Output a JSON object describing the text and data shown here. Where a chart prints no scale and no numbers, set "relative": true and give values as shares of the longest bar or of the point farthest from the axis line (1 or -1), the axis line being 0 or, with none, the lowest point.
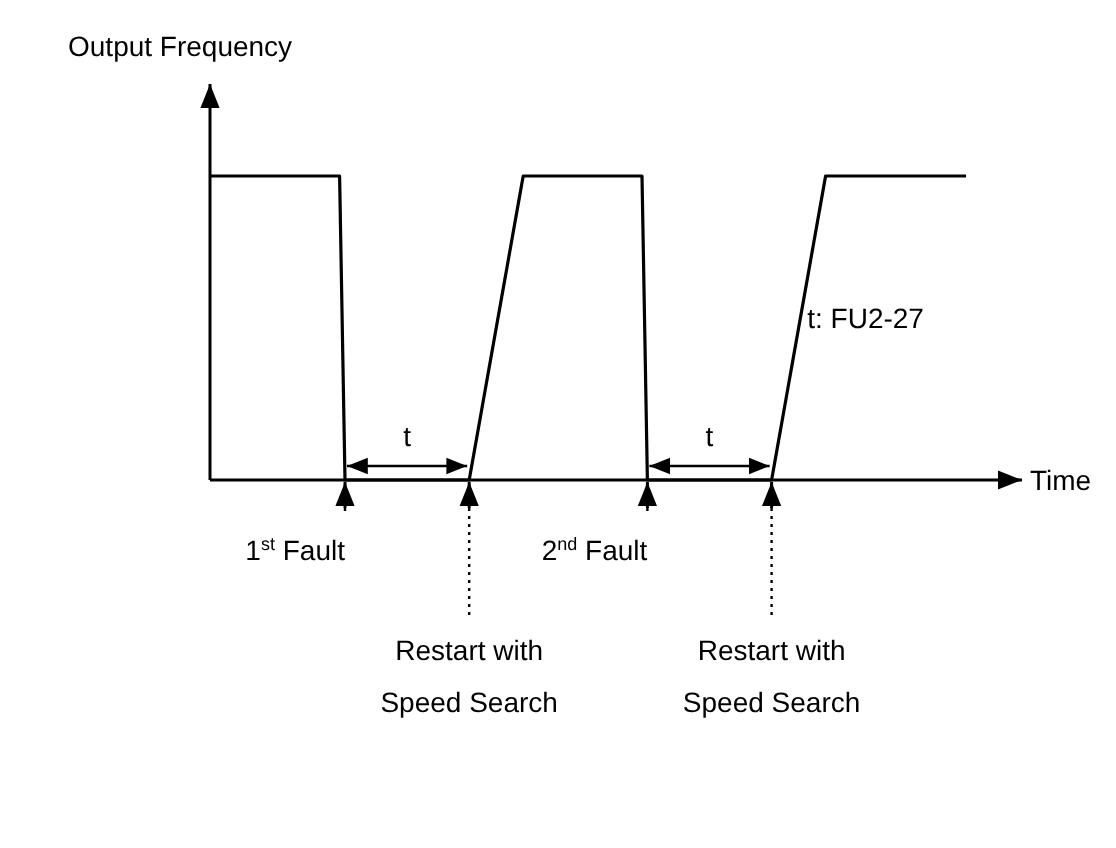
{
  "chart_data": {
    "type": "line",
    "relative": true,
    "ylabel": "Output Frequency",
    "xlabel": "Time",
    "categories": [
      null,
      null,
      null,
      null,
      null,
      null,
      null,
      null,
      null,
      null,
      null,
      null,
      null,
      null,
      null,
      null,
      null,
      null,
      null,
      null,
      null,
      null,
      null,
      null,
      null,
      null,
      null,
      null,
      null,
      null,
      null,
      null,
      null,
      null,
      null,
      null,
      null,
      null,
      null,
      null,
      null,
      null,
      null,
      null,
      null,
      null,
      null,
      null,
      null,
      null,
      null,
      null,
      null,
      null,
      null,
      null,
      null,
      null,
      null,
      null,
      null,
      null,
      null,
      null,
      null,
      null,
      null,
      null,
      null,
      null,
      null,
      null,
      null,
      null,
      null,
      null,
      null,
      null,
      null,
      null,
      null,
      null,
      null,
      null,
      null,
      null,
      null,
      null,
      null,
      null,
      null,
      null,
      null,
      null,
      null,
      null,
      null,
      null,
      null,
      null,
      null,
      null,
      null,
      null,
      null,
      null,
      null,
      null,
      null,
      null,
      null,
      null,
      null,
      null,
      null,
      null,
      null,
      null,
      null,
      null,
      null,
      null,
      null,
      null,
      null,
      null,
      null,
      null,
      null,
      null,
      null,
      null,
      null,
      null,
      null,
      null,
      null,
      null,
      null,
      null,
      null
    ],
    "series": [
      {
        "color": "#000000",
        "values": [
          1,
          1,
          1,
          1,
          1,
          1,
          1,
          1,
          1,
          1,
          1,
          1,
          1,
          1,
          1,
          1,
          1,
          1,
          1,
          1,
          1,
          1,
          1,
          1,
          1,
          0,
          0,
          0,
          0,
          0,
          0,
          0,
          0,
          0,
          0,
          0,
          0,
          0,
          0,
          0,
          0,
          0,
          0,
          0,
          0,
          0,
          0,
          0,
          0,
          0.1,
          0.2,
          0.3,
          0.4,
          0.5,
          0.6,
          0.7,
          0.8,
          0.9,
          1,
          1,
          1,
          1,
          1,
          1,
          1,
          1,
          1,
          1,
          1,
          1,
          1,
          1,
          1,
          1,
          1,
          1,
          1,
          1,
          1,
          1,
          1,
          0,
          0,
          0,
          0,
          0,
          0,
          0,
          0,
          0,
          0,
          0,
          0,
          0,
          0,
          0,
          0,
          0,
          0,
          0,
          0,
          0,
          0,
          0,
          0,
          0.1,
          0.2,
          0.3,
          0.4,
          0.5,
          0.6,
          0.7,
          0.8,
          0.9,
          1,
          1,
          1,
          1,
          1,
          1,
          1,
          1,
          1,
          1,
          1,
          1,
          1,
          1,
          1,
          1,
          1,
          1,
          1,
          1,
          1,
          1,
          1,
          1,
          1,
          1,
          1
        ]
      }
    ],
    "annotations": [
      "1$^{st}$ Fault",
      "t",
      "Restart with Speed Search",
      "2$^{nd}$ Fault",
      "t",
      "Restart with Speed Search",
      "t: FU2-27"
    ]
  }
}
